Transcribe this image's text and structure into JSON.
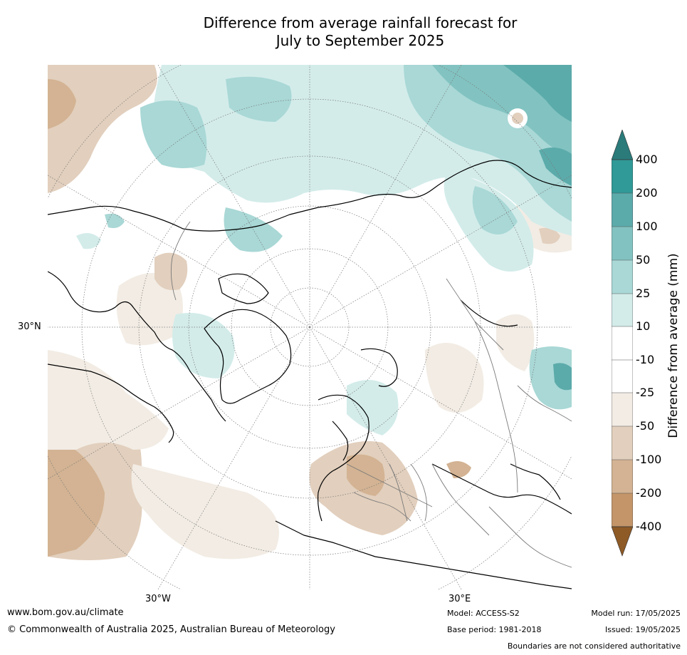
{
  "title_line1": "Difference from average rainfall forecast for",
  "title_line2": "July to September 2025",
  "map": {
    "projection": "north-polar-stereographic",
    "lat_labels": [
      "30°N"
    ],
    "lon_labels": [
      "30°W",
      "30°E"
    ]
  },
  "colorbar": {
    "title": "Difference from average (mm)",
    "tick_labels": [
      "400",
      "200",
      "100",
      "50",
      "25",
      "10",
      "-10",
      "-25",
      "-50",
      "-100",
      "-200",
      "-400"
    ],
    "colors": {
      "gt_400": "#2a7b7a",
      "200_400": "#2f9a97",
      "100_200": "#5cabab",
      "50_100": "#82c3c1",
      "25_50": "#a9d8d6",
      "10_25": "#d3ecea",
      "neutral": "#ffffff",
      "m25_m10": "#f2ece4",
      "m50_m25": "#e2cfbd",
      "m100_m50": "#d3b393",
      "m200_m100": "#c39568",
      "m400_m200": "#ae7843",
      "lt_m400": "#8e5a26"
    }
  },
  "footer": {
    "website": "www.bom.gov.au/climate",
    "copyright": "© Commonwealth of Australia 2025, Australian Bureau of Meteorology",
    "model": "Model: ACCESS-S2",
    "base_period": "Base period: 1981-2018",
    "model_run": "Model run: 17/05/2025",
    "issued": "Issued: 19/05/2025",
    "disclaimer": "Boundaries are not considered authoritative"
  }
}
